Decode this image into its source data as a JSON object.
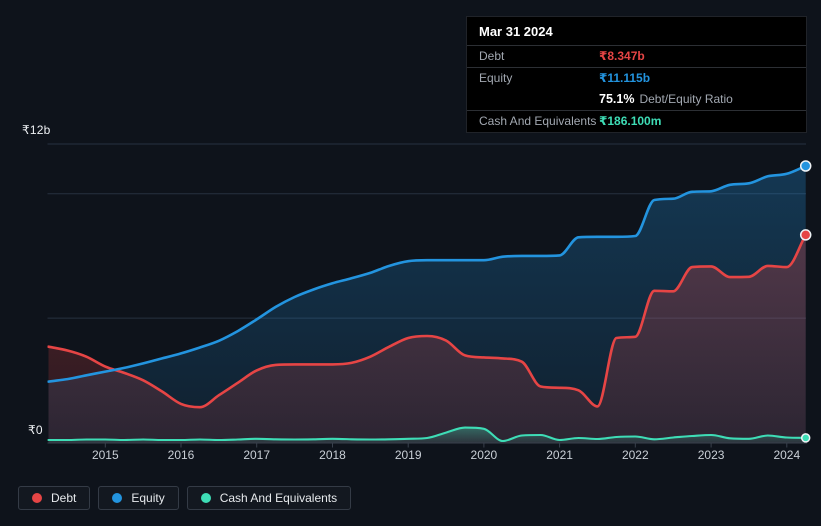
{
  "colors": {
    "debt": "#e64545",
    "equity": "#2394df",
    "cash": "#3eddb6",
    "background": "#0e131b",
    "tooltip_background": "#000000",
    "gridline": "#273140",
    "axis": "#39414d",
    "tick_label": "#c9cfd6",
    "y_label": "#eef1f4"
  },
  "tooltip": {
    "date": "Mar 31 2024",
    "debt": {
      "label": "Debt",
      "value": "₹8.347b"
    },
    "equity": {
      "label": "Equity",
      "value": "₹11.115b"
    },
    "ratio": {
      "value": "75.1%",
      "label": "Debt/Equity Ratio"
    },
    "cash": {
      "label": "Cash And Equivalents",
      "value": "₹186.100m"
    }
  },
  "legend": {
    "items": [
      {
        "label": "Debt",
        "color_key": "debt"
      },
      {
        "label": "Equity",
        "color_key": "equity"
      },
      {
        "label": "Cash And Equivalents",
        "color_key": "cash"
      }
    ]
  },
  "chart_data": {
    "type": "area",
    "ylim": [
      0,
      12
    ],
    "y_axis": {
      "top_label": "₹12b",
      "bottom_label": "₹0"
    },
    "gridline_values_b": [
      5,
      10,
      12
    ],
    "x_tick_years": [
      2015,
      2016,
      2017,
      2018,
      2019,
      2020,
      2021,
      2022,
      2023,
      2024
    ],
    "x_tick_labels": [
      "2015",
      "2016",
      "2017",
      "2018",
      "2019",
      "2020",
      "2021",
      "2022",
      "2023",
      "2024"
    ],
    "legend_position": "bottom",
    "x": [
      2014.25,
      2014.5,
      2014.75,
      2015,
      2015.25,
      2015.5,
      2015.75,
      2016,
      2016.25,
      2016.5,
      2016.75,
      2017,
      2017.25,
      2017.5,
      2017.75,
      2018,
      2018.25,
      2018.5,
      2018.75,
      2019,
      2019.25,
      2019.5,
      2019.75,
      2020,
      2020.25,
      2020.5,
      2020.75,
      2021,
      2021.25,
      2021.5,
      2021.75,
      2022,
      2022.25,
      2022.5,
      2022.75,
      2023,
      2023.25,
      2023.5,
      2023.75,
      2024,
      2024.25
    ],
    "series": [
      {
        "name": "Debt",
        "color_key": "debt",
        "unit": "₹b",
        "end_value_label": "₹8.347b",
        "values": [
          3.85,
          3.7,
          3.45,
          3.05,
          2.8,
          2.5,
          2.05,
          1.55,
          1.42,
          1.9,
          2.4,
          2.9,
          3.12,
          3.14,
          3.14,
          3.14,
          3.2,
          3.45,
          3.85,
          4.2,
          4.28,
          4.1,
          3.5,
          3.42,
          3.38,
          3.25,
          2.25,
          2.2,
          2.1,
          1.45,
          4.2,
          4.25,
          6.1,
          6.08,
          7.05,
          7.08,
          6.65,
          6.66,
          7.1,
          7.05,
          8.347
        ]
      },
      {
        "name": "Equity",
        "color_key": "equity",
        "unit": "₹b",
        "end_value_label": "₹11.115b",
        "values": [
          2.45,
          2.55,
          2.7,
          2.85,
          3.0,
          3.18,
          3.38,
          3.58,
          3.82,
          4.09,
          4.48,
          4.95,
          5.45,
          5.85,
          6.15,
          6.4,
          6.6,
          6.82,
          7.1,
          7.29,
          7.33,
          7.33,
          7.33,
          7.33,
          7.47,
          7.5,
          7.5,
          7.52,
          8.25,
          8.27,
          8.27,
          8.3,
          9.75,
          9.8,
          10.08,
          10.1,
          10.36,
          10.42,
          10.7,
          10.8,
          11.115
        ]
      },
      {
        "name": "Cash And Equivalents",
        "color_key": "cash",
        "unit": "₹b",
        "end_value_label": "₹186.100m",
        "values": [
          0.1,
          0.1,
          0.12,
          0.12,
          0.1,
          0.12,
          0.1,
          0.1,
          0.12,
          0.1,
          0.12,
          0.15,
          0.13,
          0.12,
          0.13,
          0.15,
          0.13,
          0.12,
          0.13,
          0.15,
          0.18,
          0.4,
          0.6,
          0.55,
          0.06,
          0.28,
          0.3,
          0.1,
          0.18,
          0.14,
          0.22,
          0.24,
          0.13,
          0.2,
          0.26,
          0.3,
          0.17,
          0.15,
          0.28,
          0.2,
          0.186
        ]
      }
    ]
  }
}
